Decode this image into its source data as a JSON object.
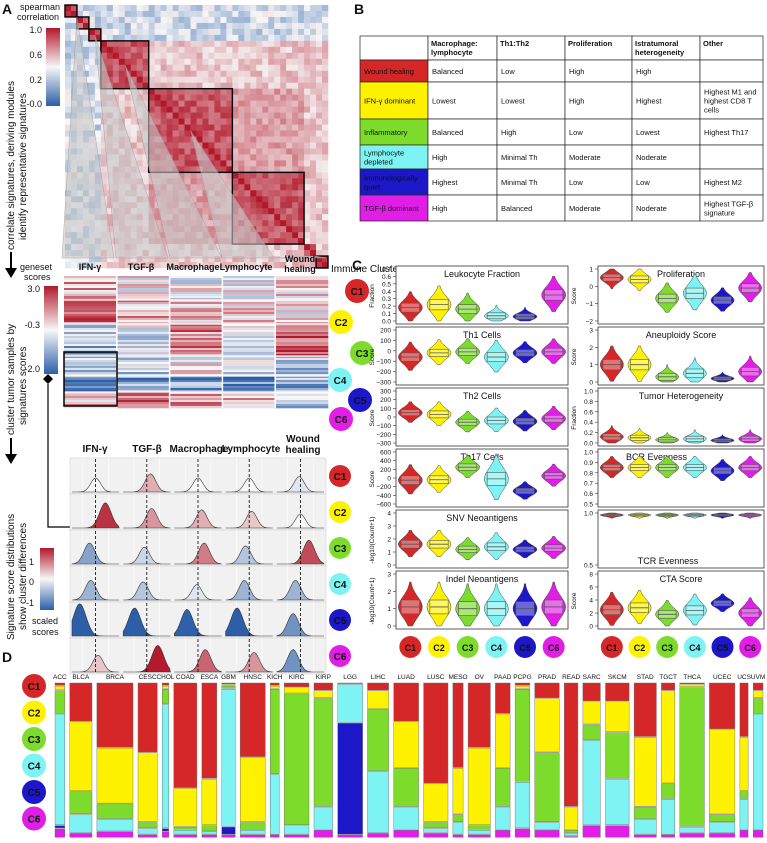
{
  "panels": {
    "a": "A",
    "b": "B",
    "c": "C",
    "d": "D"
  },
  "colors": {
    "C1": "#d62728",
    "C2": "#fff200",
    "C3": "#7ddc2b",
    "C4": "#7ef3f3",
    "C5": "#1c17c9",
    "C6": "#e01ee6",
    "heat_high": "#b2182b",
    "heat_mid": "#f7f7f7",
    "heat_low": "#2c5fa8"
  },
  "panel_a": {
    "left_labels": [
      "correlate signatures, deriving modules",
      "identify representative signatures",
      "cluster tumor samples by",
      "signatures scores",
      "Signature score distributions",
      "show cluster differences"
    ],
    "legend1": {
      "title1": "spearman",
      "title2": "correlation",
      "ticks": [
        "1.0",
        "0.6",
        "0.2",
        "-0.0"
      ]
    },
    "legend2": {
      "title1": "geneset",
      "title2": "scores",
      "ticks": [
        "3.0",
        "-0.3",
        "-2.0"
      ]
    },
    "legend3": {
      "ticks": [
        "1",
        "0",
        "-1"
      ],
      "title1": "scaled",
      "title2": "scores"
    },
    "modules": [
      "IFN-γ",
      "TGF-β",
      "Macrophage",
      "Lymphocyte",
      "Wound healing"
    ],
    "modules_bottom": [
      "IFN-γ",
      "TGF-β",
      "Macrophage",
      "Lymphocyte",
      "Wound healing"
    ],
    "immune_clusters_title": "Immune Clusters",
    "clusters": [
      "C1",
      "C2",
      "C3",
      "C4",
      "C5",
      "C6"
    ],
    "ridge_shifts": [
      [
        0.0,
        0.3,
        0.0,
        0.0,
        -0.1
      ],
      [
        0.8,
        0.4,
        0.3,
        0.2,
        0.0
      ],
      [
        -0.5,
        -0.2,
        0.5,
        -0.3,
        0.7
      ],
      [
        -0.4,
        -0.3,
        -0.1,
        -0.4,
        -0.4
      ],
      [
        -1.3,
        -1.0,
        -0.9,
        -1.0,
        -0.6
      ],
      [
        0.2,
        0.9,
        0.6,
        0.4,
        -0.6
      ]
    ]
  },
  "table_b": {
    "headers": [
      "",
      "Macrophage: lymphocyte",
      "Th1:Th2",
      "Proliferation",
      "Istratumoral heterogeneity",
      "Other"
    ],
    "rows": [
      {
        "cluster": "C1",
        "name": "Wound healing",
        "cells": [
          "Balanced",
          "Low",
          "High",
          "High",
          ""
        ]
      },
      {
        "cluster": "C2",
        "name": "IFN-γ dominant",
        "cells": [
          "Lowest",
          "Lowest",
          "High",
          "Highest",
          "Highest M1 and highest CD8 T cells"
        ]
      },
      {
        "cluster": "C3",
        "name": "Inflammatory",
        "cells": [
          "Balanced",
          "High",
          "Low",
          "Lowest",
          "Highest Th17"
        ]
      },
      {
        "cluster": "C4",
        "name": "Lymphocyte depleted",
        "cells": [
          "High",
          "Minimal Th",
          "Moderate",
          "Noderate",
          ""
        ]
      },
      {
        "cluster": "C5",
        "name": "Immunologically quiet",
        "cells": [
          "Highest",
          "Minimal Th",
          "Low",
          "Low",
          "Highest M2"
        ]
      },
      {
        "cluster": "C6",
        "name": "TGF-β dominant",
        "cells": [
          "High",
          "Balanced",
          "Moderate",
          "Noderate",
          "Highest TGF-β signature"
        ]
      }
    ]
  },
  "chart_data": [
    {
      "type": "violin",
      "id": "C_left",
      "categories": [
        "C1",
        "C2",
        "C3",
        "C4",
        "C5",
        "C6"
      ],
      "panels": [
        {
          "title": "Leukocyte Fraction",
          "ylabel": "Fraction",
          "ylim": [
            0,
            0.7
          ],
          "ticks": [
            0,
            0.1,
            0.2,
            0.3,
            0.4,
            0.5,
            0.6,
            0.7
          ],
          "tick_labels": [
            "0.0",
            "0.1",
            "0.2",
            "0.3",
            "0.4",
            "0.5",
            "0.6",
            "0.7"
          ],
          "medians": [
            0.18,
            0.22,
            0.16,
            0.07,
            0.06,
            0.35
          ],
          "spread": [
            0.12,
            0.14,
            0.12,
            0.08,
            0.07,
            0.14
          ]
        },
        {
          "title": "Th1 Cells",
          "ylabel": "Score",
          "ylim": [
            -300,
            200
          ],
          "ticks": [
            -300,
            -200,
            -100,
            0,
            100,
            200
          ],
          "tick_labels": [
            "−300",
            "−200",
            "−100",
            "0",
            "100",
            "200"
          ],
          "medians": [
            -60,
            -20,
            -10,
            -60,
            -20,
            -10
          ],
          "spread": [
            80,
            70,
            70,
            90,
            60,
            70
          ]
        },
        {
          "title": "Th2 Cells",
          "ylabel": "Score",
          "ylim": [
            -300,
            300
          ],
          "ticks": [
            -300,
            -200,
            -100,
            0,
            100,
            200,
            300
          ],
          "tick_labels": [
            "−300",
            "−200",
            "−100",
            "0",
            "100",
            "200",
            "300"
          ],
          "medians": [
            50,
            30,
            -60,
            -40,
            -50,
            -20
          ],
          "spread": [
            70,
            80,
            70,
            80,
            70,
            80
          ]
        },
        {
          "title": "Th17 Cells",
          "ylabel": "Score",
          "ylim": [
            -600,
            600
          ],
          "ticks": [
            -600,
            -400,
            -200,
            0,
            200,
            400,
            600
          ],
          "tick_labels": [
            "−600",
            "−400",
            "−200",
            "0",
            "200",
            "400",
            "600"
          ],
          "medians": [
            -50,
            -40,
            250,
            -20,
            -300,
            50
          ],
          "spread": [
            200,
            180,
            150,
            300,
            120,
            150
          ]
        },
        {
          "title": "SNV Neoantigens",
          "ylabel": "-log10(Count+1)",
          "ylim": [
            0,
            4
          ],
          "ticks": [
            0,
            1,
            2,
            3,
            4
          ],
          "tick_labels": [
            "0",
            "1",
            "2",
            "3",
            "4"
          ],
          "medians": [
            1.6,
            1.6,
            1.2,
            1.4,
            1.2,
            1.3
          ],
          "spread": [
            0.6,
            0.6,
            0.5,
            0.6,
            0.4,
            0.5
          ]
        },
        {
          "title": "Indel Neoantigens",
          "ylabel": "-log10(Count+1)",
          "ylim": [
            0,
            3
          ],
          "ticks": [
            0,
            1,
            2,
            3
          ],
          "tick_labels": [
            "0",
            "1",
            "2",
            "3"
          ],
          "medians": [
            1.1,
            1.1,
            1.0,
            1.0,
            1.0,
            1.1
          ],
          "spread": [
            0.8,
            0.8,
            0.8,
            0.8,
            0.8,
            0.8
          ]
        }
      ]
    },
    {
      "type": "violin",
      "id": "C_right",
      "categories": [
        "C1",
        "C2",
        "C3",
        "C4",
        "C5",
        "C6"
      ],
      "panels": [
        {
          "title": "Proliferation",
          "ylabel": "Score",
          "ylim": [
            -2,
            1
          ],
          "ticks": [
            -2,
            -1,
            0,
            1
          ],
          "tick_labels": [
            "−2",
            "−1",
            "0",
            "1"
          ],
          "medians": [
            0.5,
            0.4,
            -0.7,
            -0.4,
            -0.8,
            -0.1
          ],
          "spread": [
            0.4,
            0.4,
            0.5,
            0.6,
            0.4,
            0.5
          ]
        },
        {
          "title": "Aneuploidy Score",
          "ylabel": "Score",
          "ylim": [
            0,
            3
          ],
          "ticks": [
            0,
            1,
            2,
            3
          ],
          "tick_labels": [
            "0",
            "1",
            "2",
            "3"
          ],
          "medians": [
            1.0,
            1.0,
            0.3,
            0.5,
            0.2,
            0.6
          ],
          "spread": [
            0.6,
            0.6,
            0.4,
            0.5,
            0.2,
            0.5
          ]
        },
        {
          "title": "Tumor Heterogeneity",
          "ylabel": "Fraction",
          "ylim": [
            0,
            1
          ],
          "ticks": [
            0,
            0.2,
            0.4,
            0.6,
            0.8,
            1.0
          ],
          "tick_labels": [
            "0.0",
            "0.2",
            "0.4",
            "0.6",
            "0.8",
            "1.0"
          ],
          "medians": [
            0.12,
            0.1,
            0.06,
            0.08,
            0.05,
            0.08
          ],
          "spread": [
            0.12,
            0.1,
            0.08,
            0.1,
            0.06,
            0.1
          ]
        },
        {
          "title": "BCR Evenness",
          "ylabel": "",
          "ylim": [
            0.5,
            1
          ],
          "ticks": [
            0.5,
            0.6,
            0.7,
            0.8,
            0.9,
            1.0
          ],
          "tick_labels": [
            "0.5",
            "0.6",
            "0.7",
            "0.8",
            "0.9",
            "1.0"
          ],
          "medians": [
            0.85,
            0.85,
            0.85,
            0.85,
            0.82,
            0.85
          ],
          "spread": [
            0.06,
            0.06,
            0.06,
            0.06,
            0.06,
            0.06
          ]
        },
        {
          "title": "TCR Evenness",
          "ylabel": "",
          "ylim": [
            0.5,
            1
          ],
          "ticks": [
            0.5,
            1.0
          ],
          "tick_labels": [
            "0.5",
            "1.0"
          ],
          "medians": [
            0.98,
            0.98,
            0.98,
            0.98,
            0.98,
            0.98
          ],
          "spread": [
            0.02,
            0.02,
            0.02,
            0.02,
            0.02,
            0.02
          ]
        },
        {
          "title": "CTA Score",
          "ylabel": "Score",
          "ylim": [
            0,
            8
          ],
          "ticks": [
            0,
            2,
            4,
            6,
            8
          ],
          "tick_labels": [
            "0",
            "2",
            "4",
            "6",
            "8"
          ],
          "medians": [
            2.5,
            2.8,
            1.8,
            2.4,
            3.5,
            2.0
          ],
          "spread": [
            1.5,
            1.5,
            1.2,
            1.4,
            0.8,
            1.3
          ]
        }
      ]
    },
    {
      "type": "stacked_bar",
      "id": "D",
      "ylabel_legend": [
        "C1",
        "C2",
        "C3",
        "C4",
        "C5",
        "C6"
      ],
      "categories": [
        "ACC",
        "BLCA",
        "BRCA",
        "CESC",
        "CHOL",
        "COAD",
        "ESCA",
        "GBM",
        "HNSC",
        "KICH",
        "KIRC",
        "KIRP",
        "LGG",
        "LIHC",
        "LUAD",
        "LUSC",
        "MESO",
        "OV",
        "PAAD",
        "PCPG",
        "PRAD",
        "READ",
        "SARC",
        "SKCM",
        "STAD",
        "TGCT",
        "THCA",
        "UCEC",
        "UCS",
        "UVM"
      ],
      "sample_counts": [
        79,
        407,
        1080,
        304,
        36,
        440,
        184,
        150,
        519,
        66,
        511,
        288,
        512,
        370,
        513,
        492,
        86,
        412,
        179,
        178,
        497,
        154,
        255,
        461,
        413,
        149,
        501,
        540,
        56,
        80
      ],
      "fractions": [
        [
          0.02,
          0.03,
          0.15,
          0.72,
          0.02,
          0.06
        ],
        [
          0.25,
          0.45,
          0.15,
          0.12,
          0.0,
          0.03
        ],
        [
          0.42,
          0.36,
          0.1,
          0.08,
          0.0,
          0.04
        ],
        [
          0.45,
          0.45,
          0.04,
          0.04,
          0.0,
          0.02
        ],
        [
          0.02,
          0.02,
          0.1,
          0.8,
          0.02,
          0.04
        ],
        [
          0.68,
          0.25,
          0.02,
          0.03,
          0.0,
          0.02
        ],
        [
          0.62,
          0.3,
          0.04,
          0.02,
          0.0,
          0.02
        ],
        [
          0.01,
          0.01,
          0.02,
          0.89,
          0.05,
          0.02
        ],
        [
          0.48,
          0.42,
          0.05,
          0.03,
          0.0,
          0.02
        ],
        [
          0.02,
          0.02,
          0.55,
          0.39,
          0.0,
          0.02
        ],
        [
          0.03,
          0.04,
          0.85,
          0.06,
          0.0,
          0.02
        ],
        [
          0.05,
          0.05,
          0.7,
          0.15,
          0.0,
          0.05
        ],
        [
          0.0,
          0.0,
          0.01,
          0.25,
          0.72,
          0.02
        ],
        [
          0.05,
          0.12,
          0.4,
          0.4,
          0.0,
          0.03
        ],
        [
          0.25,
          0.3,
          0.25,
          0.15,
          0.0,
          0.05
        ],
        [
          0.65,
          0.25,
          0.04,
          0.03,
          0.0,
          0.03
        ],
        [
          0.55,
          0.3,
          0.05,
          0.08,
          0.0,
          0.02
        ],
        [
          0.42,
          0.5,
          0.03,
          0.03,
          0.0,
          0.02
        ],
        [
          0.2,
          0.35,
          0.25,
          0.15,
          0.0,
          0.05
        ],
        [
          0.02,
          0.02,
          0.6,
          0.3,
          0.0,
          0.06
        ],
        [
          0.1,
          0.35,
          0.45,
          0.05,
          0.0,
          0.05
        ],
        [
          0.8,
          0.15,
          0.02,
          0.02,
          0.0,
          0.01
        ],
        [
          0.12,
          0.15,
          0.1,
          0.55,
          0.0,
          0.08
        ],
        [
          0.12,
          0.2,
          0.3,
          0.3,
          0.0,
          0.08
        ],
        [
          0.35,
          0.45,
          0.08,
          0.1,
          0.0,
          0.02
        ],
        [
          0.05,
          0.6,
          0.1,
          0.23,
          0.0,
          0.02
        ],
        [
          0.01,
          0.02,
          0.9,
          0.04,
          0.0,
          0.03
        ],
        [
          0.3,
          0.55,
          0.05,
          0.07,
          0.0,
          0.03
        ],
        [
          0.35,
          0.35,
          0.05,
          0.2,
          0.0,
          0.05
        ],
        [
          0.05,
          0.05,
          0.1,
          0.75,
          0.0,
          0.05
        ]
      ]
    }
  ]
}
